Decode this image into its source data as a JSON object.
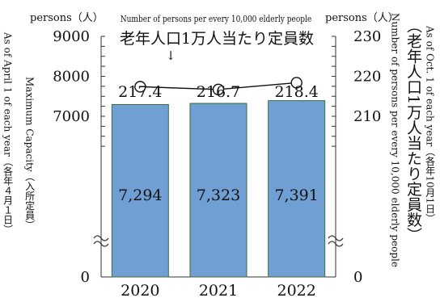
{
  "chart_data": {
    "type": "bar",
    "categories": [
      "2020",
      "2021",
      "2022"
    ],
    "series": [
      {
        "name": "Maximum Capacity（入所定員）",
        "values": [
          7294,
          7323,
          7391
        ],
        "value_labels": [
          "7,294",
          "7,323",
          "7,391"
        ],
        "axis": "left",
        "color": "#6f9fd3"
      },
      {
        "name": "Number of persons per every 10,000 elderly people",
        "values": [
          217.4,
          216.7,
          218.4
        ],
        "value_labels": [
          "217.4",
          "216.7",
          "218.4"
        ],
        "axis": "right",
        "type": "line"
      }
    ],
    "left_axis": {
      "unit": "persons（人）",
      "ticks": [
        "0",
        "7000",
        "8000",
        "9000"
      ],
      "broken": true,
      "ylim": [
        6000,
        9000
      ]
    },
    "right_axis": {
      "unit": "persons（人）",
      "ticks": [
        "0",
        "210",
        "220",
        "230"
      ],
      "broken": true,
      "ylim": [
        200,
        230
      ]
    },
    "line_annotation_en": "Number of persons per every 10,000 elderly people",
    "line_annotation_ja": "老年人口1万人当たり定員数",
    "annotation_arrow": "↓",
    "left_label_main": "Maximum Capacity（入所定員）",
    "left_label_note": "As of April 1 of each year（各年４月１日）",
    "right_label_main": "Number of persons per every 10,000 elderly people",
    "right_label_ja": "（老年人口1万人当たり定員数）",
    "right_label_note": "As of Oct. 1 of each year（各年10月1日）"
  }
}
